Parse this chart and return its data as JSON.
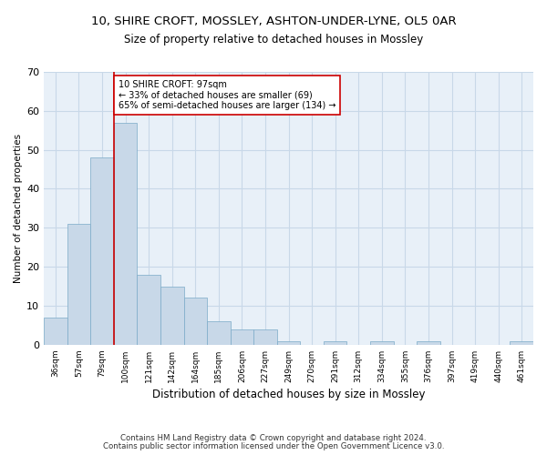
{
  "title": "10, SHIRE CROFT, MOSSLEY, ASHTON-UNDER-LYNE, OL5 0AR",
  "subtitle": "Size of property relative to detached houses in Mossley",
  "xlabel": "Distribution of detached houses by size in Mossley",
  "ylabel": "Number of detached properties",
  "categories": [
    "36sqm",
    "57sqm",
    "79sqm",
    "100sqm",
    "121sqm",
    "142sqm",
    "164sqm",
    "185sqm",
    "206sqm",
    "227sqm",
    "249sqm",
    "270sqm",
    "291sqm",
    "312sqm",
    "334sqm",
    "355sqm",
    "376sqm",
    "397sqm",
    "419sqm",
    "440sqm",
    "461sqm"
  ],
  "values": [
    7,
    31,
    48,
    57,
    18,
    15,
    12,
    6,
    4,
    4,
    1,
    0,
    1,
    0,
    1,
    0,
    1,
    0,
    0,
    0,
    1
  ],
  "bar_color": "#c8d8e8",
  "bar_edge_color": "#7aaac8",
  "grid_color": "#c8d8e8",
  "background_color": "#e8f0f8",
  "property_line_x": 3,
  "annotation_text": "10 SHIRE CROFT: 97sqm\n← 33% of detached houses are smaller (69)\n65% of semi-detached houses are larger (134) →",
  "annotation_box_color": "#ffffff",
  "annotation_line_color": "#cc0000",
  "ylim": [
    0,
    70
  ],
  "yticks": [
    0,
    10,
    20,
    30,
    40,
    50,
    60,
    70
  ],
  "footer1": "Contains HM Land Registry data © Crown copyright and database right 2024.",
  "footer2": "Contains public sector information licensed under the Open Government Licence v3.0."
}
